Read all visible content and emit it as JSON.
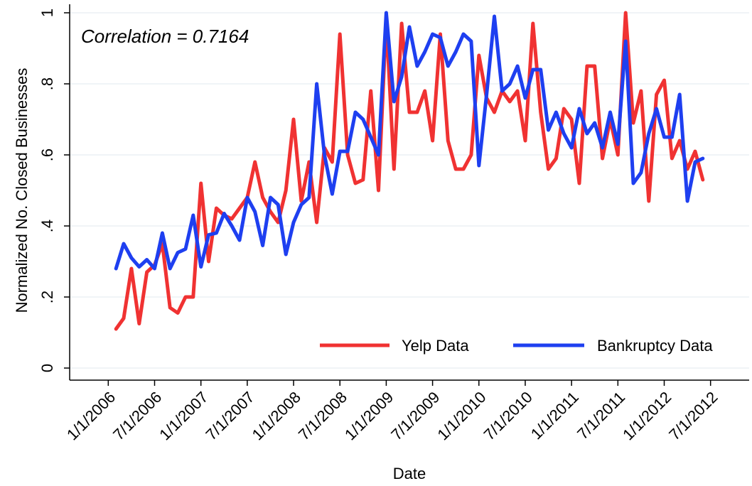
{
  "chart_data": {
    "type": "line",
    "title": "",
    "xlabel": "Date",
    "ylabel": "Normalized No. Closed Businesses",
    "annotation": "Correlation = 0.7164",
    "ylim": [
      0,
      1
    ],
    "y_ticks": [
      {
        "value": 0,
        "label": "0"
      },
      {
        "value": 0.2,
        "label": ".2"
      },
      {
        "value": 0.4,
        "label": ".4"
      },
      {
        "value": 0.6,
        "label": ".6"
      },
      {
        "value": 0.8,
        "label": ".8"
      },
      {
        "value": 1,
        "label": "1"
      }
    ],
    "x_range_months": [
      -5,
      83
    ],
    "x_ticks": [
      {
        "month": 0,
        "label": "1/1/2006"
      },
      {
        "month": 6,
        "label": "7/1/2006"
      },
      {
        "month": 12,
        "label": "1/1/2007"
      },
      {
        "month": 18,
        "label": "7/1/2007"
      },
      {
        "month": 24,
        "label": "1/1/2008"
      },
      {
        "month": 30,
        "label": "7/1/2008"
      },
      {
        "month": 36,
        "label": "1/1/2009"
      },
      {
        "month": 42,
        "label": "7/1/2009"
      },
      {
        "month": 48,
        "label": "1/1/2010"
      },
      {
        "month": 54,
        "label": "7/1/2010"
      },
      {
        "month": 60,
        "label": "1/1/2011"
      },
      {
        "month": 66,
        "label": "7/1/2011"
      },
      {
        "month": 72,
        "label": "1/1/2012"
      },
      {
        "month": 78,
        "label": "7/1/2012"
      }
    ],
    "x_start_month": 1,
    "grid": true,
    "legend_position": "bottom-right",
    "series": [
      {
        "name": "Yelp Data",
        "color": "#f03232",
        "values": [
          0.11,
          0.14,
          0.28,
          0.125,
          0.27,
          0.29,
          0.35,
          0.17,
          0.155,
          0.2,
          0.2,
          0.52,
          0.3,
          0.45,
          0.43,
          0.42,
          0.45,
          0.48,
          0.58,
          0.48,
          0.44,
          0.41,
          0.5,
          0.7,
          0.47,
          0.58,
          0.41,
          0.62,
          0.58,
          0.94,
          0.6,
          0.52,
          0.53,
          0.78,
          0.5,
          0.98,
          0.56,
          0.97,
          0.72,
          0.72,
          0.78,
          0.64,
          0.94,
          0.64,
          0.56,
          0.56,
          0.6,
          0.88,
          0.76,
          0.72,
          0.78,
          0.75,
          0.78,
          0.64,
          0.97,
          0.72,
          0.56,
          0.59,
          0.73,
          0.7,
          0.52,
          0.85,
          0.85,
          0.59,
          0.7,
          0.6,
          1.0,
          0.69,
          0.78,
          0.47,
          0.77,
          0.81,
          0.59,
          0.64,
          0.56,
          0.61,
          0.53
        ]
      },
      {
        "name": "Bankruptcy Data",
        "color": "#1e3ff0",
        "values": [
          0.28,
          0.35,
          0.31,
          0.285,
          0.305,
          0.28,
          0.38,
          0.28,
          0.325,
          0.335,
          0.43,
          0.285,
          0.375,
          0.38,
          0.435,
          0.4,
          0.36,
          0.48,
          0.44,
          0.345,
          0.48,
          0.46,
          0.32,
          0.41,
          0.46,
          0.48,
          0.8,
          0.6,
          0.49,
          0.61,
          0.61,
          0.72,
          0.7,
          0.65,
          0.6,
          1.0,
          0.75,
          0.82,
          0.96,
          0.85,
          0.89,
          0.94,
          0.93,
          0.85,
          0.89,
          0.94,
          0.92,
          0.57,
          0.77,
          0.99,
          0.78,
          0.8,
          0.85,
          0.76,
          0.84,
          0.84,
          0.67,
          0.72,
          0.66,
          0.62,
          0.73,
          0.66,
          0.69,
          0.62,
          0.72,
          0.63,
          0.92,
          0.52,
          0.55,
          0.66,
          0.73,
          0.65,
          0.65,
          0.77,
          0.47,
          0.58,
          0.59
        ]
      }
    ]
  }
}
